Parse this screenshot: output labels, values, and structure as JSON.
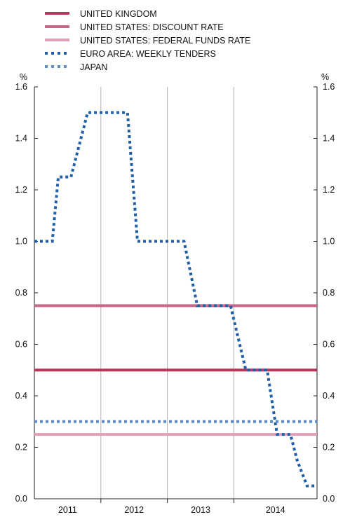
{
  "chart_data": {
    "type": "line",
    "x_axis": {
      "categories": [
        "2011",
        "2012",
        "2013",
        "2014"
      ],
      "range": [
        2010.5,
        2014.75
      ]
    },
    "y_axis": {
      "unit_left": "%",
      "unit_right": "%",
      "ylim": [
        0.0,
        1.6
      ],
      "ticks": [
        "0.0",
        "0.2",
        "0.4",
        "0.6",
        "0.8",
        "1.0",
        "1.2",
        "1.4",
        "1.6"
      ]
    },
    "grid": {
      "vertical": true,
      "horizontal": false
    },
    "legend_position": "top-left",
    "series": [
      {
        "name": "UNITED KINGDOM",
        "color": "#b5375a",
        "style": "solid",
        "x": [
          2010.5,
          2014.75
        ],
        "y": [
          0.5,
          0.5
        ]
      },
      {
        "name": "UNITED STATES: DISCOUNT RATE",
        "color": "#c8688a",
        "style": "solid",
        "x": [
          2010.5,
          2014.75
        ],
        "y": [
          0.75,
          0.75
        ]
      },
      {
        "name": "UNITED STATES: FEDERAL FUNDS RATE",
        "color": "#e2a0b8",
        "style": "solid",
        "x": [
          2010.5,
          2014.75
        ],
        "y": [
          0.25,
          0.25
        ]
      },
      {
        "name": "EURO AREA: WEEKLY TENDERS",
        "color": "#1f5fa8",
        "style": "dotted",
        "x": [
          2010.5,
          2010.66,
          2010.75,
          2010.77,
          2010.86,
          2010.92,
          2011.0,
          2011.05,
          2011.3,
          2011.35,
          2011.45,
          2011.5,
          2011.9,
          2012.05,
          2012.1,
          2012.55,
          2012.62,
          2012.68,
          2012.75,
          2012.95,
          2013.02,
          2013.05,
          2013.22,
          2013.3,
          2013.42,
          2013.45,
          2013.68,
          2013.8,
          2013.82,
          2014.0,
          2014.15,
          2014.25,
          2014.35,
          2014.45,
          2014.6,
          2014.75
        ],
        "y": [
          1.0,
          1.0,
          1.0,
          1.0,
          1.25,
          1.25,
          1.25,
          1.25,
          1.5,
          1.5,
          1.5,
          1.5,
          1.5,
          1.0,
          1.0,
          1.0,
          1.0,
          1.0,
          1.0,
          0.75,
          0.75,
          0.75,
          0.75,
          0.75,
          0.75,
          0.75,
          0.5,
          0.5,
          0.5,
          0.5,
          0.25,
          0.25,
          0.25,
          0.15,
          0.05,
          0.05
        ]
      },
      {
        "name": "JAPAN",
        "color": "#5a8ec8",
        "style": "dotted",
        "x": [
          2010.5,
          2014.75
        ],
        "y": [
          0.3,
          0.3
        ]
      }
    ]
  }
}
